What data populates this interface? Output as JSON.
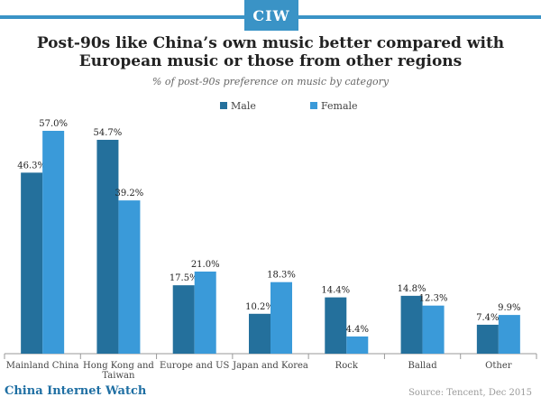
{
  "logo_text": "CIW",
  "footer": {
    "brand": "China Internet Watch",
    "source": "Source: Tencent, Dec 2015"
  },
  "colors": {
    "accent": "#3a93c6",
    "male": "#24709c",
    "female": "#3a9ad9"
  },
  "chart_data": {
    "type": "bar",
    "title": "Post-90s like China’s own music better compared with European music or those from other regions",
    "title_lines": [
      "Post-90s like China’s own music better compared with",
      "European music or those from other regions"
    ],
    "subtitle": "% of post-90s preference on music by category",
    "xlabel": "",
    "ylabel": "",
    "categories": [
      "Mainland China",
      "Hong Kong and Taiwan",
      "Europe and US",
      "Japan and Korea",
      "Rock",
      "Ballad",
      "Other"
    ],
    "category_lines": [
      [
        "Mainland China"
      ],
      [
        "Hong Kong and",
        "Taiwan"
      ],
      [
        "Europe and US"
      ],
      [
        "Japan and Korea"
      ],
      [
        "Rock"
      ],
      [
        "Ballad"
      ],
      [
        "Other"
      ]
    ],
    "series": [
      {
        "name": "Male",
        "values": [
          46.3,
          54.7,
          17.5,
          10.2,
          14.4,
          14.8,
          7.4
        ],
        "labels": [
          "46.3%",
          "54.7%",
          "17.5%",
          "10.2%",
          "14.4%",
          "14.8%",
          "7.4%"
        ]
      },
      {
        "name": "Female",
        "values": [
          57.0,
          39.2,
          21.0,
          18.3,
          4.4,
          12.3,
          9.9
        ],
        "labels": [
          "57.0%",
          "39.2%",
          "21.0%",
          "18.3%",
          "4.4%",
          "12.3%",
          "9.9%"
        ]
      }
    ],
    "ylim": [
      0,
      57
    ],
    "grid": false,
    "legend": "top-center"
  }
}
